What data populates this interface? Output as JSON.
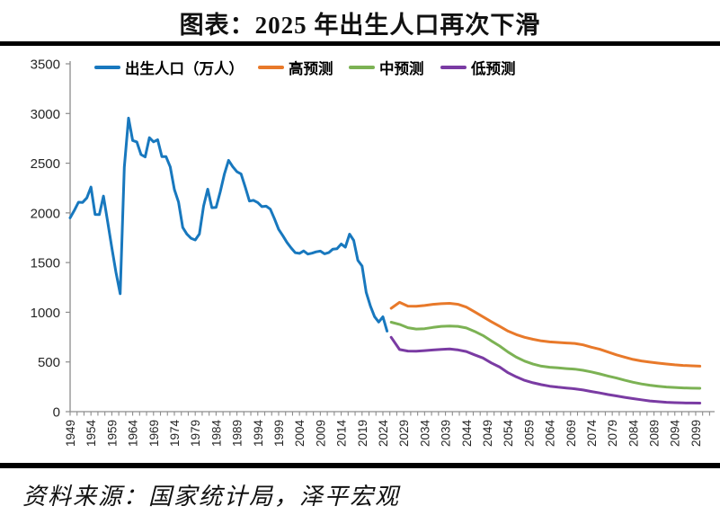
{
  "title": "图表：2025 年出生人口再次下滑",
  "source": {
    "text": "资料来源：国家统计局，泽平宏观"
  },
  "colors": {
    "birth_line": "#1878BE",
    "high_forecast": "#E8792A",
    "mid_forecast": "#7CB254",
    "low_forecast": "#7A3BA3",
    "axis": "#8C8C8C",
    "tick_text": "#262626",
    "divider": "#000000"
  },
  "legend": {
    "items": [
      {
        "label": "出生人口（万人）",
        "color": "#1878BE"
      },
      {
        "label": "高预测",
        "color": "#E8792A"
      },
      {
        "label": "中预测",
        "color": "#7CB254"
      },
      {
        "label": "低预测",
        "color": "#7A3BA3"
      }
    ]
  },
  "chart_data": {
    "type": "line",
    "title": "图表：2025 年出生人口再次下滑",
    "xlabel": "",
    "ylabel": "出生人口（万人）",
    "ylim": [
      0,
      3500
    ],
    "y_tick_step": 500,
    "y_tick_labels": [
      "0",
      "500",
      "1000",
      "1500",
      "2000",
      "2500",
      "3000",
      "3500"
    ],
    "x_tick_labels": [
      "1949",
      "1954",
      "1959",
      "1964",
      "1969",
      "1974",
      "1979",
      "1984",
      "1989",
      "1994",
      "1999",
      "2004",
      "2009",
      "2014",
      "2019",
      "2024",
      "2029",
      "2034",
      "2039",
      "2044",
      "2049",
      "2054",
      "2059",
      "2064",
      "2069",
      "2074",
      "2079",
      "2084",
      "2089",
      "2094",
      "2099"
    ],
    "grid": false,
    "legend_position": "top",
    "series": [
      {
        "name": "出生人口（万人）",
        "color": "#1878BE",
        "x_start": 1949,
        "x_step": 1,
        "values": [
          1950,
          2023,
          2107,
          2105,
          2151,
          2260,
          1984,
          1982,
          2169,
          1909,
          1650,
          1402,
          1187,
          2460,
          2954,
          2729,
          2714,
          2587,
          2563,
          2757,
          2715,
          2736,
          2567,
          2566,
          2463,
          2235,
          2109,
          1853,
          1787,
          1745,
          1727,
          1787,
          2069,
          2238,
          2052,
          2055,
          2211,
          2393,
          2529,
          2465,
          2414,
          2391,
          2258,
          2119,
          2126,
          2104,
          2063,
          2067,
          2038,
          1942,
          1834,
          1771,
          1702,
          1647,
          1599,
          1593,
          1617,
          1585,
          1594,
          1608,
          1615,
          1588,
          1600,
          1635,
          1640,
          1687,
          1655,
          1786,
          1723,
          1523,
          1465,
          1200,
          1062,
          956,
          902,
          954,
          810
        ]
      },
      {
        "name": "高预测",
        "color": "#E8792A",
        "x": [
          2026,
          2028,
          2030,
          2032,
          2034,
          2036,
          2038,
          2040,
          2042,
          2044,
          2046,
          2048,
          2050,
          2052,
          2054,
          2056,
          2058,
          2060,
          2062,
          2064,
          2066,
          2068,
          2070,
          2072,
          2074,
          2076,
          2078,
          2080,
          2082,
          2084,
          2086,
          2088,
          2090,
          2092,
          2094,
          2096,
          2098,
          2100
        ],
        "values": [
          1040,
          1100,
          1062,
          1060,
          1068,
          1080,
          1086,
          1090,
          1080,
          1052,
          1005,
          955,
          905,
          858,
          810,
          775,
          748,
          728,
          712,
          702,
          696,
          691,
          686,
          672,
          648,
          628,
          600,
          572,
          548,
          525,
          510,
          498,
          488,
          479,
          471,
          465,
          461,
          458
        ]
      },
      {
        "name": "中预测",
        "color": "#7CB254",
        "x": [
          2026,
          2028,
          2030,
          2032,
          2034,
          2036,
          2038,
          2040,
          2042,
          2044,
          2046,
          2048,
          2050,
          2052,
          2054,
          2056,
          2058,
          2060,
          2062,
          2064,
          2066,
          2068,
          2070,
          2072,
          2074,
          2076,
          2078,
          2080,
          2082,
          2084,
          2086,
          2088,
          2090,
          2092,
          2094,
          2096,
          2098,
          2100
        ],
        "values": [
          900,
          878,
          845,
          831,
          835,
          847,
          858,
          862,
          858,
          842,
          808,
          766,
          712,
          660,
          600,
          548,
          508,
          478,
          458,
          447,
          440,
          433,
          428,
          416,
          400,
          380,
          358,
          338,
          316,
          296,
          279,
          266,
          256,
          248,
          243,
          239,
          236,
          235
        ]
      },
      {
        "name": "低预测",
        "color": "#7A3BA3",
        "x": [
          2026,
          2028,
          2030,
          2032,
          2034,
          2036,
          2038,
          2040,
          2042,
          2044,
          2046,
          2048,
          2050,
          2052,
          2054,
          2056,
          2058,
          2060,
          2062,
          2064,
          2066,
          2068,
          2070,
          2072,
          2074,
          2076,
          2078,
          2080,
          2082,
          2084,
          2086,
          2088,
          2090,
          2092,
          2094,
          2096,
          2098,
          2100
        ],
        "values": [
          748,
          625,
          610,
          609,
          614,
          620,
          626,
          630,
          621,
          605,
          572,
          540,
          490,
          449,
          392,
          350,
          315,
          290,
          271,
          256,
          246,
          238,
          230,
          218,
          203,
          188,
          172,
          158,
          144,
          131,
          119,
          108,
          100,
          94,
          90,
          88,
          87,
          86
        ]
      }
    ]
  }
}
